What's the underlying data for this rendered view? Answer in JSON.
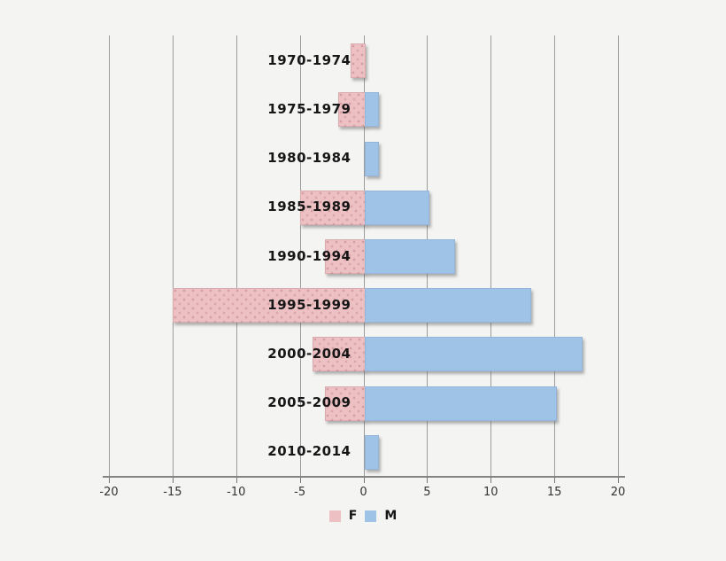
{
  "chart_data": {
    "type": "bar",
    "variant": "horizontal-diverging-pyramid",
    "title": "",
    "categories": [
      "1970-1974",
      "1975-1979",
      "1980-1984",
      "1985-1989",
      "1990-1994",
      "1995-1999",
      "2000-2004",
      "2005-2009",
      "2010-2014"
    ],
    "series": [
      {
        "name": "F",
        "color": "#edc0c3",
        "values": [
          -1,
          -2,
          0,
          -5,
          -3,
          -15,
          -4,
          -3,
          0
        ]
      },
      {
        "name": "M",
        "color": "#9fc3e7",
        "values": [
          0,
          1,
          1,
          5,
          7,
          13,
          17,
          15,
          1
        ]
      }
    ],
    "xlim": [
      -20,
      20
    ],
    "x_ticks": [
      -20,
      -15,
      -10,
      -5,
      0,
      5,
      10,
      15,
      20
    ],
    "grid": true,
    "legend_position": "bottom"
  },
  "colors": {
    "background": "#f4f4f3",
    "gridline": "#9c9c9c",
    "axis_line": "#848484",
    "female_bar": "#edc0c3",
    "male_bar": "#9fc3e7",
    "label_text": "#161616"
  }
}
